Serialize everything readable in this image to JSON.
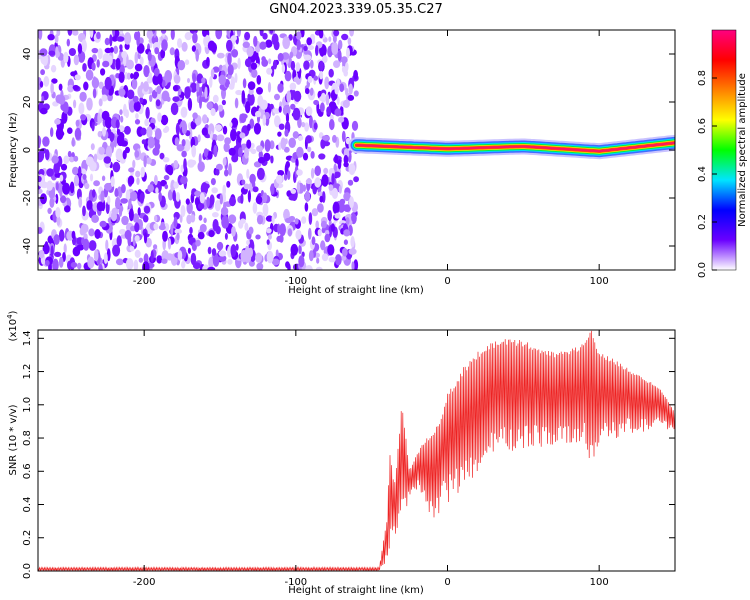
{
  "title": "GN04.2023.339.05.35.C27",
  "chart_data": [
    {
      "type": "heatmap",
      "xlabel": "Height of straight line (km)",
      "ylabel": "Frequency (Hz)",
      "xlim": [
        -270,
        150
      ],
      "ylim": [
        -50,
        50
      ],
      "xticks": [
        -200,
        -100,
        0,
        100
      ],
      "xtick_labels": [
        "-200",
        "-100",
        "0",
        "100"
      ],
      "yticks": [
        -40,
        -20,
        0,
        20,
        40
      ],
      "ytick_labels": [
        "-40",
        "-20",
        "0",
        "20",
        "40"
      ],
      "noise_region_x": [
        -270,
        -60
      ],
      "line_region_x": [
        -60,
        150
      ],
      "line_frequency": [
        [
          -60,
          2
        ],
        [
          0,
          0.5
        ],
        [
          50,
          1.5
        ],
        [
          100,
          -0.5
        ],
        [
          150,
          3
        ]
      ],
      "colorbar": {
        "label": "Normalized spectral amplitude",
        "range": [
          0,
          1
        ],
        "ticks": [
          0.0,
          0.2,
          0.4,
          0.6,
          0.8
        ],
        "tick_labels": [
          "0.0",
          "0.2",
          "0.4",
          "0.6",
          "0.8"
        ],
        "colors": [
          "#ffffff",
          "#6a00ff",
          "#0000ff",
          "#00e5ff",
          "#00ff00",
          "#ffff00",
          "#ff8000",
          "#ff0000",
          "#ff0080"
        ]
      },
      "grid": false
    },
    {
      "type": "line",
      "xlabel": "Height of straight line (km)",
      "ylabel": "SNR (10 * v/v)",
      "yscale_label": "(x10",
      "yscale_exp": "4",
      "yscale_close": ")",
      "xlim": [
        -270,
        150
      ],
      "ylim": [
        0,
        1.45
      ],
      "xticks": [
        -200,
        -100,
        0,
        100
      ],
      "xtick_labels": [
        "-200",
        "-100",
        "0",
        "100"
      ],
      "yticks": [
        0.0,
        0.2,
        0.4,
        0.6,
        0.8,
        1.0,
        1.2,
        1.4
      ],
      "ytick_labels": [
        "0.0",
        "0.2",
        "0.4",
        "0.6",
        "0.8",
        "1.0",
        "1.2",
        "1.4"
      ],
      "color": "#ee2222",
      "series": [
        {
          "x": [
            -270,
            -100,
            -45,
            -40,
            -38,
            -35,
            -30,
            -25,
            -20,
            -15,
            -10,
            -5,
            0,
            10,
            20,
            30,
            40,
            50,
            60,
            70,
            80,
            90,
            95,
            100,
            110,
            120,
            130,
            140,
            150
          ],
          "upper": [
            0.02,
            0.02,
            0.02,
            0.3,
            0.72,
            0.5,
            1.0,
            0.6,
            0.7,
            0.78,
            0.8,
            0.9,
            1.05,
            1.2,
            1.3,
            1.36,
            1.38,
            1.37,
            1.33,
            1.3,
            1.32,
            1.35,
            1.45,
            1.3,
            1.26,
            1.2,
            1.15,
            1.1,
            0.95
          ],
          "lower": [
            0.0,
            0.0,
            0.0,
            0.05,
            0.1,
            0.2,
            0.3,
            0.45,
            0.5,
            0.4,
            0.3,
            0.35,
            0.4,
            0.5,
            0.6,
            0.68,
            0.72,
            0.73,
            0.74,
            0.75,
            0.76,
            0.77,
            0.62,
            0.73,
            0.8,
            0.82,
            0.84,
            0.86,
            0.85
          ]
        }
      ],
      "grid": false
    }
  ]
}
